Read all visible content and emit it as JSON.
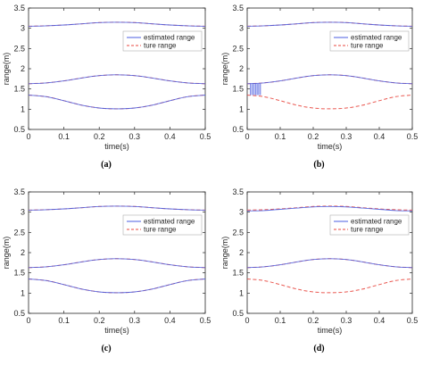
{
  "colors": {
    "estimated": "#4b5ee0",
    "true": "#e8473f",
    "overlap": "#b04fbf",
    "axis": "#262626"
  },
  "chart_data": [
    {
      "caption": "(a)",
      "type": "line",
      "xlabel": "time(s)",
      "ylabel": "range(m)",
      "xlim": [
        0,
        0.5
      ],
      "ylim": [
        0.5,
        3.5
      ],
      "xticks": [
        "0",
        "0.1",
        "0.2",
        "0.3",
        "0.4",
        "0.5"
      ],
      "yticks": [
        "0.5",
        "1",
        "1.5",
        "2",
        "2.5",
        "3",
        "3.5"
      ],
      "legend": {
        "position": "top-right",
        "entries": [
          "estimated range",
          "ture range"
        ]
      },
      "x": [
        0,
        0.05,
        0.1,
        0.15,
        0.2,
        0.25,
        0.3,
        0.35,
        0.4,
        0.45,
        0.5
      ],
      "series": [
        {
          "name": "ture range",
          "style": "dashed",
          "color": "true",
          "curves": [
            [
              3.05,
              3.06,
              3.08,
              3.11,
              3.14,
              3.15,
              3.14,
              3.11,
              3.08,
              3.06,
              3.05
            ],
            [
              1.63,
              1.65,
              1.7,
              1.77,
              1.83,
              1.85,
              1.83,
              1.77,
              1.7,
              1.65,
              1.63
            ],
            [
              1.35,
              1.31,
              1.21,
              1.1,
              1.03,
              1.01,
              1.03,
              1.1,
              1.21,
              1.31,
              1.35
            ]
          ]
        },
        {
          "name": "estimated range",
          "style": "solid",
          "color": "estimated",
          "curves": [
            [
              3.05,
              3.06,
              3.08,
              3.11,
              3.14,
              3.15,
              3.14,
              3.11,
              3.08,
              3.06,
              3.05
            ],
            [
              1.63,
              1.65,
              1.7,
              1.77,
              1.83,
              1.85,
              1.83,
              1.77,
              1.7,
              1.65,
              1.63
            ],
            [
              1.35,
              1.31,
              1.21,
              1.1,
              1.03,
              1.01,
              1.03,
              1.1,
              1.21,
              1.31,
              1.35
            ]
          ]
        }
      ]
    },
    {
      "caption": "(b)",
      "type": "line",
      "xlabel": "time(s)",
      "ylabel": "range(m)",
      "xlim": [
        0,
        0.5
      ],
      "ylim": [
        0.5,
        3.5
      ],
      "xticks": [
        "0",
        "0.1",
        "0.2",
        "0.3",
        "0.4",
        "0.5"
      ],
      "yticks": [
        "0.5",
        "1",
        "1.5",
        "2",
        "2.5",
        "3",
        "3.5"
      ],
      "legend": {
        "position": "top-right",
        "entries": [
          "estimated range",
          "ture range"
        ]
      },
      "x": [
        0,
        0.05,
        0.1,
        0.15,
        0.2,
        0.25,
        0.3,
        0.35,
        0.4,
        0.45,
        0.5
      ],
      "series": [
        {
          "name": "ture range",
          "style": "dashed",
          "color": "true",
          "curves": [
            [
              3.05,
              3.06,
              3.08,
              3.11,
              3.14,
              3.15,
              3.14,
              3.11,
              3.08,
              3.06,
              3.05
            ],
            [
              1.63,
              1.65,
              1.7,
              1.77,
              1.83,
              1.85,
              1.83,
              1.77,
              1.7,
              1.65,
              1.63
            ],
            [
              1.35,
              1.31,
              1.21,
              1.1,
              1.03,
              1.01,
              1.03,
              1.1,
              1.21,
              1.31,
              1.35
            ]
          ]
        },
        {
          "name": "estimated range",
          "style": "solid",
          "color": "estimated",
          "curves": [
            [
              3.05,
              3.06,
              3.08,
              3.11,
              3.14,
              3.15,
              3.14,
              3.11,
              3.08,
              3.06,
              3.05
            ],
            [
              1.63,
              1.65,
              1.7,
              1.77,
              1.83,
              1.85,
              1.83,
              1.77,
              1.7,
              1.65,
              1.63
            ]
          ]
        }
      ],
      "jump_segments": {
        "x": [
          0.01,
          0.015,
          0.02,
          0.025,
          0.03,
          0.035,
          0.04
        ],
        "low": 1.35,
        "high": 1.63
      }
    },
    {
      "caption": "(c)",
      "type": "line",
      "xlabel": "time(s)",
      "ylabel": "range(m)",
      "xlim": [
        0,
        0.5
      ],
      "ylim": [
        0.5,
        3.5
      ],
      "xticks": [
        "0",
        "0.1",
        "0.2",
        "0.3",
        "0.4",
        "0.5"
      ],
      "yticks": [
        "0.5",
        "1",
        "1.5",
        "2",
        "2.5",
        "3",
        "3.5"
      ],
      "legend": {
        "position": "top-right",
        "entries": [
          "estimated range",
          "ture range"
        ]
      },
      "x": [
        0,
        0.05,
        0.1,
        0.15,
        0.2,
        0.25,
        0.3,
        0.35,
        0.4,
        0.45,
        0.5
      ],
      "series": [
        {
          "name": "ture range",
          "style": "dashed",
          "color": "true",
          "curves": [
            [
              3.05,
              3.06,
              3.08,
              3.11,
              3.14,
              3.15,
              3.14,
              3.11,
              3.08,
              3.06,
              3.05
            ],
            [
              1.63,
              1.65,
              1.7,
              1.77,
              1.83,
              1.85,
              1.83,
              1.77,
              1.7,
              1.65,
              1.63
            ],
            [
              1.35,
              1.31,
              1.21,
              1.1,
              1.03,
              1.01,
              1.03,
              1.1,
              1.21,
              1.31,
              1.35
            ]
          ]
        },
        {
          "name": "estimated range",
          "style": "solid",
          "color": "estimated",
          "curves": [
            [
              3.05,
              3.06,
              3.08,
              3.11,
              3.14,
              3.15,
              3.14,
              3.11,
              3.08,
              3.06,
              3.05
            ],
            [
              1.63,
              1.65,
              1.7,
              1.77,
              1.83,
              1.85,
              1.83,
              1.77,
              1.7,
              1.65,
              1.63
            ],
            [
              1.35,
              1.31,
              1.21,
              1.1,
              1.03,
              1.01,
              1.03,
              1.1,
              1.21,
              1.31,
              1.35
            ]
          ]
        }
      ]
    },
    {
      "caption": "(d)",
      "type": "line",
      "xlabel": "time(s)",
      "ylabel": "range(m)",
      "xlim": [
        0,
        0.5
      ],
      "ylim": [
        0.5,
        3.5
      ],
      "xticks": [
        "0",
        "0.1",
        "0.2",
        "0.3",
        "0.4",
        "0.5"
      ],
      "yticks": [
        "0.5",
        "1",
        "1.5",
        "2",
        "2.5",
        "3",
        "3.5"
      ],
      "legend": {
        "position": "top-right",
        "entries": [
          "estimated range",
          "ture range"
        ]
      },
      "x": [
        0,
        0.05,
        0.1,
        0.15,
        0.2,
        0.25,
        0.3,
        0.35,
        0.4,
        0.45,
        0.5
      ],
      "series": [
        {
          "name": "ture range",
          "style": "dashed",
          "color": "true",
          "curves": [
            [
              3.05,
              3.06,
              3.08,
              3.11,
              3.14,
              3.15,
              3.14,
              3.11,
              3.08,
              3.06,
              3.05
            ],
            [
              1.63,
              1.65,
              1.7,
              1.77,
              1.83,
              1.85,
              1.83,
              1.77,
              1.7,
              1.65,
              1.63
            ],
            [
              1.35,
              1.31,
              1.21,
              1.1,
              1.03,
              1.01,
              1.03,
              1.1,
              1.21,
              1.31,
              1.35
            ]
          ]
        },
        {
          "name": "estimated range",
          "style": "solid",
          "color": "estimated",
          "curves": [
            [
              3.03,
              3.04,
              3.07,
              3.1,
              3.13,
              3.14,
              3.13,
              3.1,
              3.07,
              3.04,
              3.03
            ],
            [
              1.63,
              1.65,
              1.7,
              1.77,
              1.83,
              1.85,
              1.83,
              1.77,
              1.7,
              1.65,
              1.63
            ]
          ]
        }
      ]
    }
  ]
}
